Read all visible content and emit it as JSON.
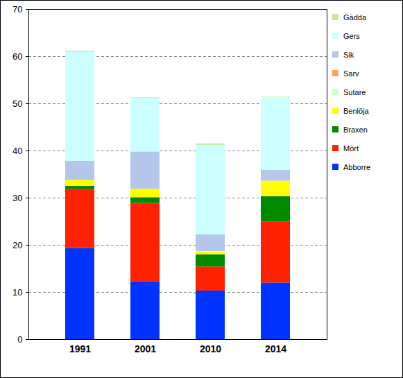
{
  "chart_data": {
    "type": "bar",
    "stacked": true,
    "grid": true,
    "legend": "right",
    "categories": [
      "1991",
      "2001",
      "2010",
      "2014"
    ],
    "ylim": [
      0,
      70
    ],
    "yticks": [
      0,
      10,
      20,
      30,
      40,
      50,
      60,
      70
    ],
    "series": [
      {
        "name": "Abborre",
        "color": "#0033ff",
        "values": [
          19.3,
          12.3,
          10.3,
          12.0
        ]
      },
      {
        "name": "Mört",
        "color": "#ff2200",
        "values": [
          12.6,
          16.6,
          5.1,
          12.9
        ]
      },
      {
        "name": "Braxen",
        "color": "#008a00",
        "values": [
          0.6,
          1.2,
          2.6,
          5.4
        ]
      },
      {
        "name": "Benlöja",
        "color": "#ffff00",
        "values": [
          1.3,
          1.8,
          0.6,
          3.3
        ]
      },
      {
        "name": "Sutare",
        "color": "#ccffcc",
        "values": [
          0,
          0,
          0.1,
          0
        ]
      },
      {
        "name": "Sarv",
        "color": "#f4a460",
        "values": [
          0,
          0,
          0,
          0
        ]
      },
      {
        "name": "Sik",
        "color": "#b4c6ea",
        "values": [
          4.0,
          7.9,
          3.5,
          2.3
        ]
      },
      {
        "name": "Gers",
        "color": "#ccffff",
        "values": [
          23.1,
          11.4,
          19.0,
          15.4
        ]
      },
      {
        "name": "Gädda",
        "color": "#c5e8a0",
        "values": [
          0.2,
          0.1,
          0.3,
          0.1
        ]
      }
    ]
  }
}
